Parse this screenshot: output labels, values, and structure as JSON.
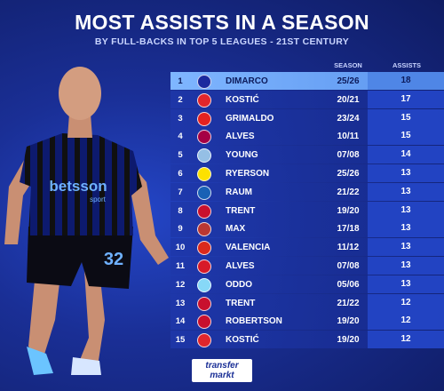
{
  "title": "MOST ASSISTS IN A SEASON",
  "subtitle": "BY FULL-BACKS IN TOP 5 LEAGUES - 21ST CENTURY",
  "columns": {
    "season": "SEASON",
    "assists": "ASSISTS"
  },
  "rows": [
    {
      "rank": "1",
      "name": "DIMARCO",
      "season": "25/26",
      "assists": "18",
      "logo_color": "#1c2a9e"
    },
    {
      "rank": "2",
      "name": "KOSTIĆ",
      "season": "20/21",
      "assists": "17",
      "logo_color": "#e1262c"
    },
    {
      "rank": "3",
      "name": "GRIMALDO",
      "season": "23/24",
      "assists": "15",
      "logo_color": "#e32221"
    },
    {
      "rank": "4",
      "name": "ALVES",
      "season": "10/11",
      "assists": "15",
      "logo_color": "#a50044"
    },
    {
      "rank": "5",
      "name": "YOUNG",
      "season": "07/08",
      "assists": "14",
      "logo_color": "#95bfe5"
    },
    {
      "rank": "6",
      "name": "RYERSON",
      "season": "25/26",
      "assists": "13",
      "logo_color": "#fde100"
    },
    {
      "rank": "7",
      "name": "RAUM",
      "season": "21/22",
      "assists": "13",
      "logo_color": "#1961b5"
    },
    {
      "rank": "8",
      "name": "TRENT",
      "season": "19/20",
      "assists": "13",
      "logo_color": "#c8102e"
    },
    {
      "rank": "9",
      "name": "MAX",
      "season": "17/18",
      "assists": "13",
      "logo_color": "#ba3733"
    },
    {
      "rank": "10",
      "name": "VALENCIA",
      "season": "11/12",
      "assists": "13",
      "logo_color": "#da291c"
    },
    {
      "rank": "11",
      "name": "ALVES",
      "season": "07/08",
      "assists": "13",
      "logo_color": "#d71a28"
    },
    {
      "rank": "12",
      "name": "ODDO",
      "season": "05/06",
      "assists": "13",
      "logo_color": "#87d8f7"
    },
    {
      "rank": "13",
      "name": "TRENT",
      "season": "21/22",
      "assists": "12",
      "logo_color": "#c8102e"
    },
    {
      "rank": "14",
      "name": "ROBERTSON",
      "season": "19/20",
      "assists": "12",
      "logo_color": "#c8102e"
    },
    {
      "rank": "15",
      "name": "KOSTIĆ",
      "season": "19/20",
      "assists": "12",
      "logo_color": "#e1262c"
    }
  ],
  "player": {
    "sponsor": "betsson",
    "sponsor_sub": "sport",
    "number": "32"
  },
  "brand": {
    "line1": "transfer",
    "line2": "markt"
  }
}
